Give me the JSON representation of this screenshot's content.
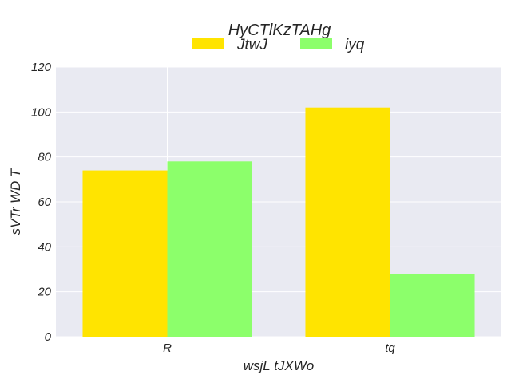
{
  "chart_data": {
    "type": "bar",
    "title": "HyCTlKzTAHg",
    "xlabel": "wsjL tJXWo",
    "ylabel": "sVTr WD T",
    "categories": [
      "R",
      "tq"
    ],
    "series": [
      {
        "name": "JtwJ",
        "values": [
          74,
          102
        ],
        "color": "#ffe400"
      },
      {
        "name": "iyq",
        "values": [
          78,
          28
        ],
        "color": "#8cff6b"
      }
    ],
    "ylim": [
      0,
      120
    ],
    "yticks": [
      "0",
      "20",
      "40",
      "60",
      "80",
      "100",
      "120"
    ],
    "grid": true,
    "legend": "top-center",
    "background": "#e9eaf2"
  }
}
